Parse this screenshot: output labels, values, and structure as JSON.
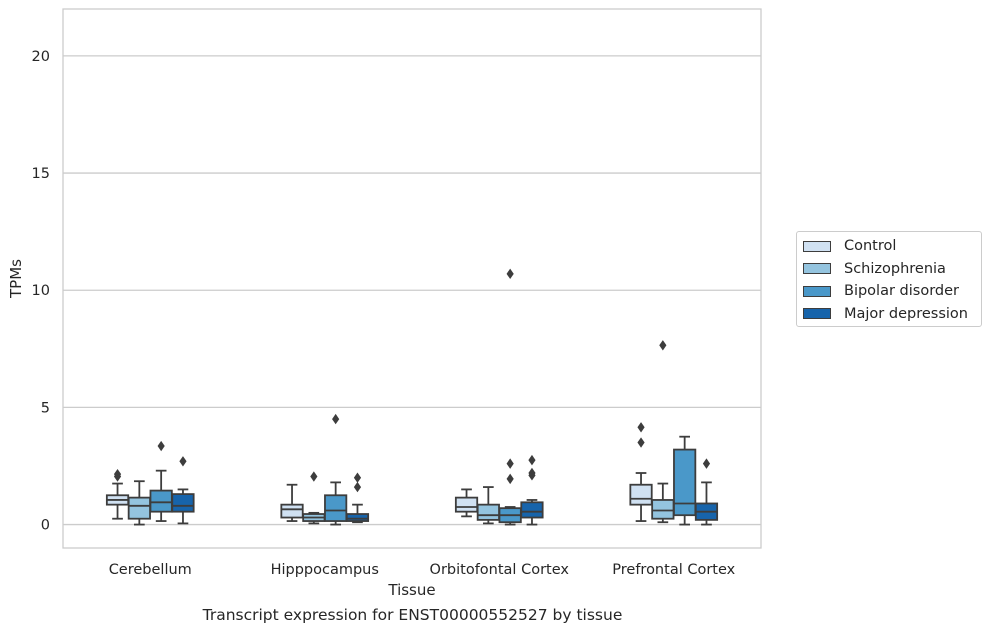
{
  "chart_data": {
    "type": "box",
    "xlabel": "Tissue",
    "ylabel": "TPMs",
    "ylim": [
      -1,
      22
    ],
    "yticks": [
      0,
      5,
      10,
      15,
      20
    ],
    "grid": "horizontal",
    "legend_position": "right",
    "categories": [
      "Cerebellum",
      "Hipppocampus",
      "Orbitofontal Cortex",
      "Prefrontal Cortex"
    ],
    "series": [
      {
        "name": "Control",
        "color": "#d0e1f2",
        "boxes": [
          {
            "whisker_low": 0.25,
            "q1": 0.85,
            "median": 1.05,
            "q3": 1.25,
            "whisker_high": 1.75,
            "outliers": [
              2.05,
              2.15
            ]
          },
          {
            "whisker_low": 0.15,
            "q1": 0.3,
            "median": 0.65,
            "q3": 0.85,
            "whisker_high": 1.7,
            "outliers": []
          },
          {
            "whisker_low": 0.35,
            "q1": 0.55,
            "median": 0.75,
            "q3": 1.15,
            "whisker_high": 1.5,
            "outliers": []
          },
          {
            "whisker_low": 0.15,
            "q1": 0.85,
            "median": 1.1,
            "q3": 1.7,
            "whisker_high": 2.2,
            "outliers": [
              3.5,
              4.15
            ]
          }
        ]
      },
      {
        "name": "Schizophrenia",
        "color": "#94c4df",
        "boxes": [
          {
            "whisker_low": 0.0,
            "q1": 0.25,
            "median": 0.8,
            "q3": 1.15,
            "whisker_high": 1.85,
            "outliers": []
          },
          {
            "whisker_low": 0.05,
            "q1": 0.15,
            "median": 0.3,
            "q3": 0.45,
            "whisker_high": 0.5,
            "outliers": [
              2.05
            ]
          },
          {
            "whisker_low": 0.05,
            "q1": 0.2,
            "median": 0.4,
            "q3": 0.85,
            "whisker_high": 1.6,
            "outliers": []
          },
          {
            "whisker_low": 0.1,
            "q1": 0.25,
            "median": 0.6,
            "q3": 1.05,
            "whisker_high": 1.75,
            "outliers": [
              7.65
            ]
          }
        ]
      },
      {
        "name": "Bipolar disorder",
        "color": "#4a98c9",
        "boxes": [
          {
            "whisker_low": 0.15,
            "q1": 0.55,
            "median": 0.95,
            "q3": 1.45,
            "whisker_high": 2.3,
            "outliers": [
              3.35
            ]
          },
          {
            "whisker_low": 0.0,
            "q1": 0.15,
            "median": 0.6,
            "q3": 1.25,
            "whisker_high": 1.8,
            "outliers": [
              4.5
            ]
          },
          {
            "whisker_low": 0.0,
            "q1": 0.1,
            "median": 0.4,
            "q3": 0.7,
            "whisker_high": 0.75,
            "outliers": [
              1.95,
              2.6,
              10.7
            ]
          },
          {
            "whisker_low": 0.0,
            "q1": 0.4,
            "median": 0.9,
            "q3": 3.2,
            "whisker_high": 3.75,
            "outliers": []
          }
        ]
      },
      {
        "name": "Major depression",
        "color": "#1764ab",
        "boxes": [
          {
            "whisker_low": 0.05,
            "q1": 0.55,
            "median": 0.8,
            "q3": 1.3,
            "whisker_high": 1.5,
            "outliers": [
              2.7
            ]
          },
          {
            "whisker_low": 0.1,
            "q1": 0.15,
            "median": 0.25,
            "q3": 0.45,
            "whisker_high": 0.85,
            "outliers": [
              1.6,
              2.0
            ]
          },
          {
            "whisker_low": 0.0,
            "q1": 0.3,
            "median": 0.55,
            "q3": 0.95,
            "whisker_high": 1.05,
            "outliers": [
              2.1,
              2.2,
              2.75
            ]
          },
          {
            "whisker_low": 0.0,
            "q1": 0.2,
            "median": 0.55,
            "q3": 0.9,
            "whisker_high": 1.8,
            "outliers": [
              2.6
            ]
          }
        ]
      }
    ]
  },
  "caption": "Transcript expression for ENST00000552527 by tissue"
}
